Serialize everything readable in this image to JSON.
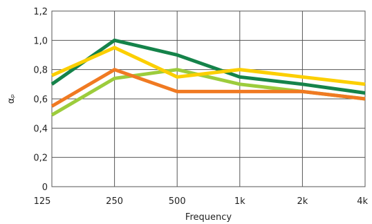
{
  "chart_data": {
    "type": "line",
    "title": "",
    "xlabel": "Frequency",
    "ylabel": "αₚ",
    "categories": [
      "125",
      "250",
      "500",
      "1k",
      "2k",
      "4k"
    ],
    "ylim": [
      0,
      1.2
    ],
    "yticks": [
      "0",
      "0,2",
      "0,4",
      "0,6",
      "0,8",
      "1,0",
      "1,2"
    ],
    "ytick_values": [
      0,
      0.2,
      0.4,
      0.6,
      0.8,
      1.0,
      1.2
    ],
    "grid": true,
    "legend": "none",
    "series": [
      {
        "color": "#9ccc3c",
        "values": [
          0.49,
          0.74,
          0.8,
          0.7,
          0.65,
          0.6
        ]
      },
      {
        "color": "#f07a22",
        "values": [
          0.55,
          0.8,
          0.65,
          0.65,
          0.65,
          0.6
        ]
      },
      {
        "color": "#15834a",
        "values": [
          0.7,
          1.0,
          0.9,
          0.75,
          0.7,
          0.64
        ]
      },
      {
        "color": "#fccf00",
        "values": [
          0.76,
          0.95,
          0.75,
          0.8,
          0.75,
          0.7
        ]
      }
    ]
  }
}
